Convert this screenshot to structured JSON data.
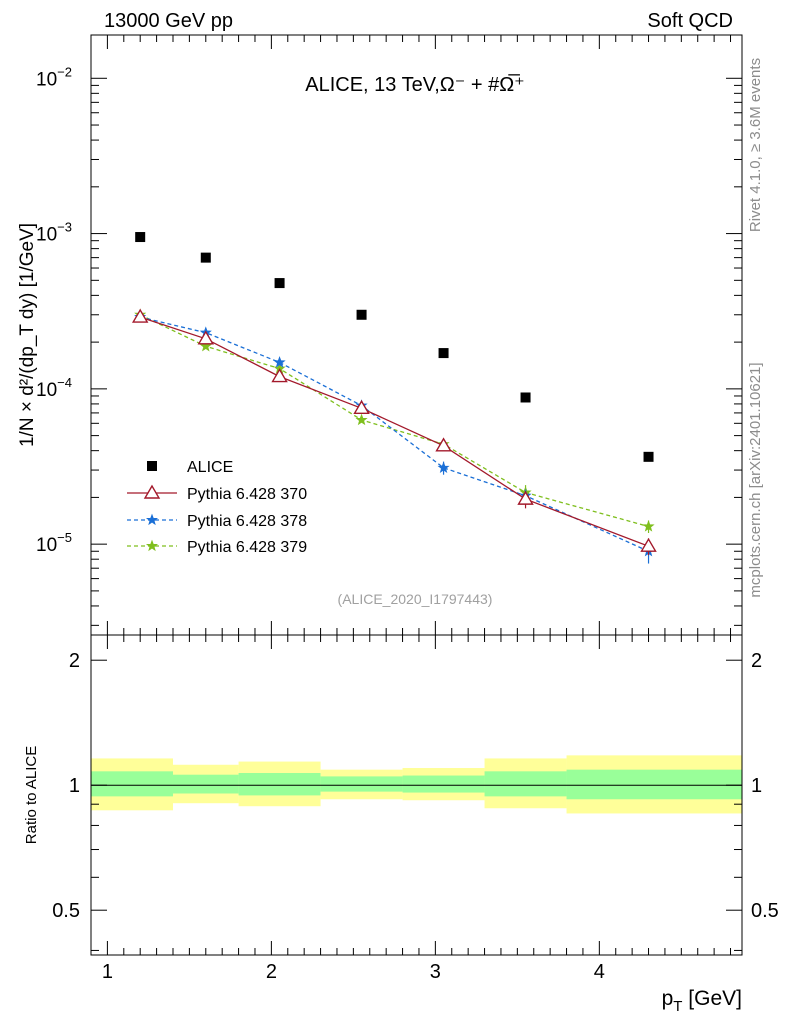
{
  "header": {
    "left": "13000 GeV pp",
    "right": "Soft QCD"
  },
  "side_labels": {
    "rivet": "Rivet 4.1.0, ≥ 3.6M events",
    "mcplots": "mcplots.cern.ch [arXiv:2401.10621]"
  },
  "colors": {
    "data": "#000000",
    "p370": "#a3192b",
    "p378": "#1a6fd6",
    "p379": "#7fbf1e",
    "band_inner": "#99ff99",
    "band_outer": "#ffff99"
  },
  "chart_data": [
    {
      "type": "scatter",
      "title": "ALICE, 13 TeV,Ω⁻ + #Ω̅⁺",
      "xlabel": "p_T [GeV]",
      "ylabel": "1/N × d²/(dp_T dy) [1/GeV]",
      "yscale": "log",
      "ylim": [
        2.6e-06,
        0.019
      ],
      "xlim": [
        0.9,
        4.87
      ],
      "ytick_labels": [
        {
          "value": 1e-05,
          "base": "10",
          "exp": "−5"
        },
        {
          "value": 0.0001,
          "base": "10",
          "exp": "−4"
        },
        {
          "value": 0.001,
          "base": "10",
          "exp": "−3"
        },
        {
          "value": 0.01,
          "base": "10",
          "exp": "−2"
        }
      ],
      "analysis_tag": "(ALICE_2020_I1797443)",
      "x": [
        1.2,
        1.6,
        2.05,
        2.55,
        3.05,
        3.55,
        4.3
      ],
      "series": [
        {
          "name": "ALICE",
          "key": "data",
          "marker": "square",
          "values": [
            0.00095,
            0.0007,
            0.00048,
            0.0003,
            0.00017,
            8.8e-05,
            3.65e-05
          ]
        },
        {
          "name": "Pythia 6.428 370",
          "key": "p370",
          "marker": "triangle",
          "line": "solid",
          "values": [
            0.00029,
            0.00021,
            0.00012,
            7.5e-05,
            4.3e-05,
            1.95e-05,
            9.7e-06
          ],
          "errors": [
            0,
            0,
            0,
            0,
            3e-06,
            2.5e-06,
            1.2e-06
          ]
        },
        {
          "name": "Pythia 6.428 378",
          "key": "p378",
          "marker": "star",
          "line": "dashed",
          "values": [
            0.00029,
            0.00023,
            0.000148,
            7.8e-05,
            3.1e-05,
            2.05e-05,
            9e-06
          ],
          "errors": [
            0,
            0,
            0,
            0,
            3e-06,
            2e-06,
            1.5e-06
          ]
        },
        {
          "name": "Pythia 6.428 379",
          "key": "p379",
          "marker": "star",
          "line": "dashed",
          "values": [
            0.0003,
            0.000188,
            0.000135,
            6.3e-05,
            4.4e-05,
            2.15e-05,
            1.3e-05
          ],
          "errors": [
            0,
            0,
            0,
            0,
            3e-06,
            2.5e-06,
            1.2e-06
          ]
        }
      ]
    },
    {
      "type": "area",
      "ylabel": "Ratio to ALICE",
      "xlabel": "p_T [GeV]",
      "yscale": "log",
      "ylim": [
        0.39,
        2.3
      ],
      "xlim": [
        0.9,
        4.87
      ],
      "yticks": [
        0.5,
        1,
        2
      ],
      "ytick_labels": [
        "0.5",
        "1",
        "2"
      ],
      "xticks": [
        1,
        2,
        3,
        4
      ],
      "xtick_labels": [
        "1",
        "2",
        "3",
        "4"
      ],
      "reference": 1,
      "bands": [
        {
          "xlo": 0.9,
          "xhi": 1.4,
          "inner": [
            0.94,
            1.08
          ],
          "outer": [
            0.87,
            1.16
          ]
        },
        {
          "xlo": 1.4,
          "xhi": 1.8,
          "inner": [
            0.955,
            1.06
          ],
          "outer": [
            0.905,
            1.12
          ]
        },
        {
          "xlo": 1.8,
          "xhi": 2.3,
          "inner": [
            0.945,
            1.07
          ],
          "outer": [
            0.89,
            1.14
          ]
        },
        {
          "xlo": 2.3,
          "xhi": 2.8,
          "inner": [
            0.965,
            1.05
          ],
          "outer": [
            0.925,
            1.09
          ]
        },
        {
          "xlo": 2.8,
          "xhi": 3.3,
          "inner": [
            0.96,
            1.055
          ],
          "outer": [
            0.92,
            1.1
          ]
        },
        {
          "xlo": 3.3,
          "xhi": 3.8,
          "inner": [
            0.94,
            1.08
          ],
          "outer": [
            0.88,
            1.16
          ]
        },
        {
          "xlo": 3.8,
          "xhi": 4.87,
          "inner": [
            0.925,
            1.09
          ],
          "outer": [
            0.855,
            1.18
          ]
        }
      ]
    }
  ]
}
